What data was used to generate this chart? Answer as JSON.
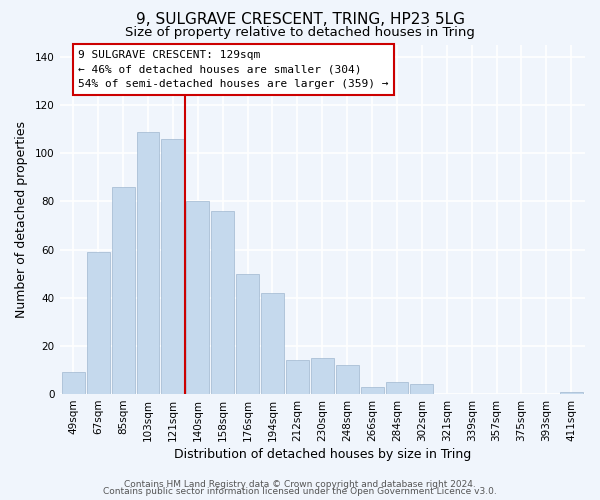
{
  "title": "9, SULGRAVE CRESCENT, TRING, HP23 5LG",
  "subtitle": "Size of property relative to detached houses in Tring",
  "xlabel": "Distribution of detached houses by size in Tring",
  "ylabel": "Number of detached properties",
  "categories": [
    "49sqm",
    "67sqm",
    "85sqm",
    "103sqm",
    "121sqm",
    "140sqm",
    "158sqm",
    "176sqm",
    "194sqm",
    "212sqm",
    "230sqm",
    "248sqm",
    "266sqm",
    "284sqm",
    "302sqm",
    "321sqm",
    "339sqm",
    "357sqm",
    "375sqm",
    "393sqm",
    "411sqm"
  ],
  "values": [
    9,
    59,
    86,
    109,
    106,
    80,
    76,
    50,
    42,
    14,
    15,
    12,
    3,
    5,
    4,
    0,
    0,
    0,
    0,
    0,
    1
  ],
  "bar_color": "#c5d9ed",
  "vline_x_index": 4,
  "vline_color": "#cc0000",
  "annotation_title": "9 SULGRAVE CRESCENT: 129sqm",
  "annotation_line1": "← 46% of detached houses are smaller (304)",
  "annotation_line2": "54% of semi-detached houses are larger (359) →",
  "annotation_box_color": "#ffffff",
  "annotation_box_edge": "#cc0000",
  "ylim": [
    0,
    145
  ],
  "yticks": [
    0,
    20,
    40,
    60,
    80,
    100,
    120,
    140
  ],
  "footer1": "Contains HM Land Registry data © Crown copyright and database right 2024.",
  "footer2": "Contains public sector information licensed under the Open Government Licence v3.0.",
  "background_color": "#f0f5fc",
  "grid_color": "#ffffff",
  "title_fontsize": 11,
  "subtitle_fontsize": 9.5,
  "axis_label_fontsize": 9,
  "tick_fontsize": 7.5,
  "annotation_fontsize": 8,
  "footer_fontsize": 6.5
}
